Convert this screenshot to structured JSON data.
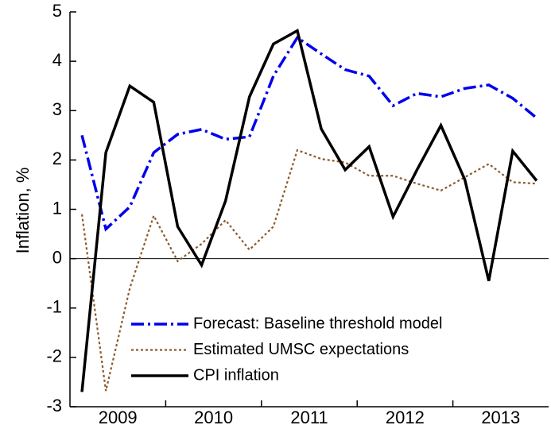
{
  "chart_data": {
    "type": "line",
    "y_label": "Inflation, %",
    "categories": [
      "2009",
      null,
      null,
      null,
      "2010",
      null,
      null,
      null,
      "2011",
      null,
      null,
      null,
      "2012",
      null,
      null,
      null,
      "2013",
      null,
      null,
      null
    ],
    "series": [
      {
        "name": "Forecast: Baseline threshold model",
        "color": "#0000ee",
        "style": "dashdot",
        "values": [
          2.5,
          0.6,
          1.05,
          2.15,
          2.52,
          2.62,
          2.42,
          2.47,
          3.7,
          4.48,
          4.15,
          3.83,
          3.7,
          3.1,
          3.35,
          3.28,
          3.45,
          3.52,
          3.25,
          2.85
        ]
      },
      {
        "name": "Estimated UMSC expectations",
        "color": "#8b5a2b",
        "style": "dotted",
        "values": [
          0.9,
          -2.68,
          -0.6,
          0.87,
          -0.05,
          0.3,
          0.78,
          0.18,
          0.65,
          2.2,
          2.02,
          1.95,
          1.68,
          1.68,
          1.52,
          1.38,
          1.65,
          1.92,
          1.55,
          1.52
        ]
      },
      {
        "name": "CPI inflation",
        "color": "#000000",
        "style": "solid",
        "values": [
          -2.7,
          2.15,
          3.5,
          3.17,
          0.65,
          -0.13,
          1.17,
          3.28,
          4.35,
          4.62,
          2.63,
          1.8,
          2.27,
          0.85,
          1.8,
          2.7,
          1.6,
          -0.45,
          2.18,
          1.58
        ]
      }
    ],
    "ylim": [
      -3,
      5
    ],
    "yticks": [
      -3,
      -2,
      -1,
      0,
      1,
      2,
      3,
      4,
      5
    ],
    "reference_line": 0,
    "legend": "lower center",
    "grid": false
  }
}
